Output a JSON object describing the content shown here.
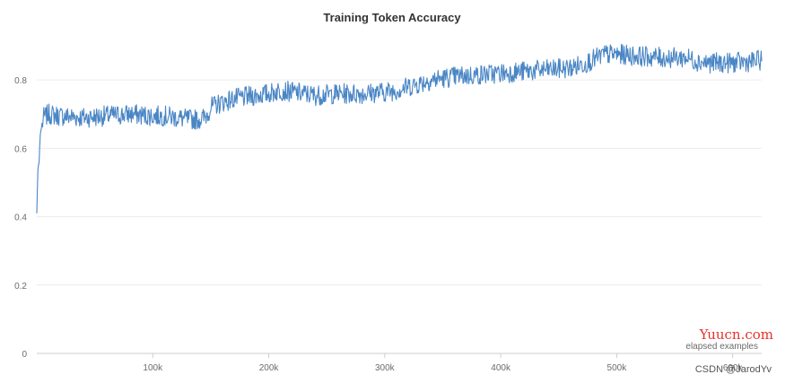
{
  "chart_data": {
    "type": "line",
    "title": "Training Token Accuracy",
    "xlabel": "elapsed examples",
    "ylabel": "",
    "xlim": [
      0,
      625000
    ],
    "ylim": [
      0,
      0.95
    ],
    "x_ticks": [
      100000,
      200000,
      300000,
      400000,
      500000,
      600000
    ],
    "x_tick_labels": [
      "100k",
      "200k",
      "300k",
      "400k",
      "500k",
      "600k"
    ],
    "y_ticks": [
      0,
      0.2,
      0.4,
      0.6,
      0.8
    ],
    "y_tick_labels": [
      "0",
      "0.2",
      "0.4",
      "0.6",
      "0.8"
    ],
    "grid": true,
    "legend": "none",
    "colors": {
      "series": "#4a86c5",
      "grid": "#ececec",
      "axis": "#cccccc"
    },
    "series": [
      {
        "points": [
          [
            0,
            0.41
          ],
          [
            1000,
            0.54
          ],
          [
            2000,
            0.56
          ],
          [
            3000,
            0.64
          ],
          [
            4000,
            0.66
          ],
          [
            6000,
            0.69
          ],
          [
            10000,
            0.7
          ],
          [
            20000,
            0.695
          ],
          [
            40000,
            0.69
          ],
          [
            60000,
            0.695
          ],
          [
            80000,
            0.7
          ],
          [
            100000,
            0.695
          ],
          [
            110000,
            0.695
          ],
          [
            120000,
            0.69
          ],
          [
            130000,
            0.685
          ],
          [
            140000,
            0.685
          ],
          [
            145000,
            0.69
          ],
          [
            150000,
            0.72
          ],
          [
            160000,
            0.735
          ],
          [
            170000,
            0.745
          ],
          [
            180000,
            0.75
          ],
          [
            190000,
            0.755
          ],
          [
            200000,
            0.76
          ],
          [
            210000,
            0.77
          ],
          [
            220000,
            0.765
          ],
          [
            240000,
            0.755
          ],
          [
            260000,
            0.76
          ],
          [
            280000,
            0.76
          ],
          [
            300000,
            0.765
          ],
          [
            310000,
            0.77
          ],
          [
            320000,
            0.78
          ],
          [
            330000,
            0.79
          ],
          [
            340000,
            0.8
          ],
          [
            350000,
            0.805
          ],
          [
            360000,
            0.81
          ],
          [
            380000,
            0.815
          ],
          [
            400000,
            0.82
          ],
          [
            420000,
            0.825
          ],
          [
            440000,
            0.83
          ],
          [
            460000,
            0.835
          ],
          [
            470000,
            0.845
          ],
          [
            480000,
            0.86
          ],
          [
            490000,
            0.875
          ],
          [
            500000,
            0.875
          ],
          [
            520000,
            0.87
          ],
          [
            540000,
            0.865
          ],
          [
            560000,
            0.865
          ],
          [
            570000,
            0.855
          ],
          [
            580000,
            0.85
          ],
          [
            600000,
            0.85
          ],
          [
            620000,
            0.855
          ],
          [
            625000,
            0.86
          ]
        ],
        "noise_amplitude": 0.03,
        "sample_count": 1250
      }
    ]
  },
  "watermark": {
    "site": "Yuucn.com",
    "credit": "CSDN @JarodYv"
  }
}
